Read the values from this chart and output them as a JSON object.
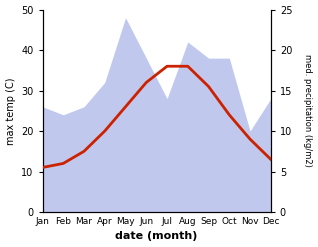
{
  "months": [
    "Jan",
    "Feb",
    "Mar",
    "Apr",
    "May",
    "Jun",
    "Jul",
    "Aug",
    "Sep",
    "Oct",
    "Nov",
    "Dec"
  ],
  "temp_max": [
    11,
    12,
    15,
    20,
    26,
    32,
    36,
    36,
    31,
    24,
    18,
    13
  ],
  "precip": [
    13,
    12,
    13,
    16,
    24,
    19,
    14,
    21,
    19,
    19,
    10,
    14
  ],
  "temp_ylim": [
    0,
    50
  ],
  "precip_ylim": [
    0,
    25
  ],
  "temp_color": "#cc2200",
  "precip_color": "#c0c8ee",
  "xlabel": "date (month)",
  "ylabel_left": "max temp (C)",
  "ylabel_right": "med. precipitation (kg/m2)",
  "background_color": "#ffffff",
  "fig_width": 3.18,
  "fig_height": 2.47,
  "dpi": 100
}
